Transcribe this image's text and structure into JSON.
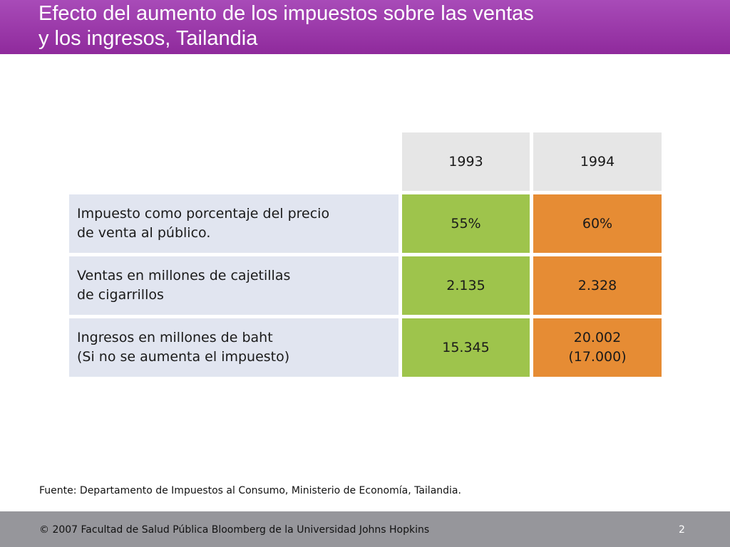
{
  "slide": {
    "title_lines": [
      "Efecto del aumento de los impuestos sobre las ventas",
      "y los ingresos, Tailandia"
    ]
  },
  "table": {
    "headers": [
      "1993",
      "1994"
    ],
    "rows": [
      {
        "label_lines": [
          "Impuesto como porcentaje del precio",
          "de venta al público."
        ],
        "v1993": "55%",
        "v1994_lines": [
          "60%"
        ]
      },
      {
        "label_lines": [
          "Ventas en millones de cajetillas",
          "de cigarrillos"
        ],
        "v1993": "2.135",
        "v1994_lines": [
          "2.328"
        ]
      },
      {
        "label_lines": [
          "Ingresos en millones de baht",
          "(Si no se aumenta el impuesto)"
        ],
        "v1993": "15.345",
        "v1994_lines": [
          "20.002",
          "(17.000)"
        ]
      }
    ],
    "colors": {
      "label_bg": "#e1e5f0",
      "header_bg": "#e6e6e6",
      "col_1993": "#9ec44c",
      "col_1994": "#e68c34"
    }
  },
  "source_note": "Fuente: Departamento de Impuestos al Consumo, Ministerio de Economía, Tailandia.",
  "footer": {
    "copyright": "© 2007 Facultad de Salud Pública Bloomberg de la Universidad Johns Hopkins",
    "page_number": "2"
  },
  "theme": {
    "title_bar": "#9b3aaa",
    "footer_bar": "#96969b"
  }
}
